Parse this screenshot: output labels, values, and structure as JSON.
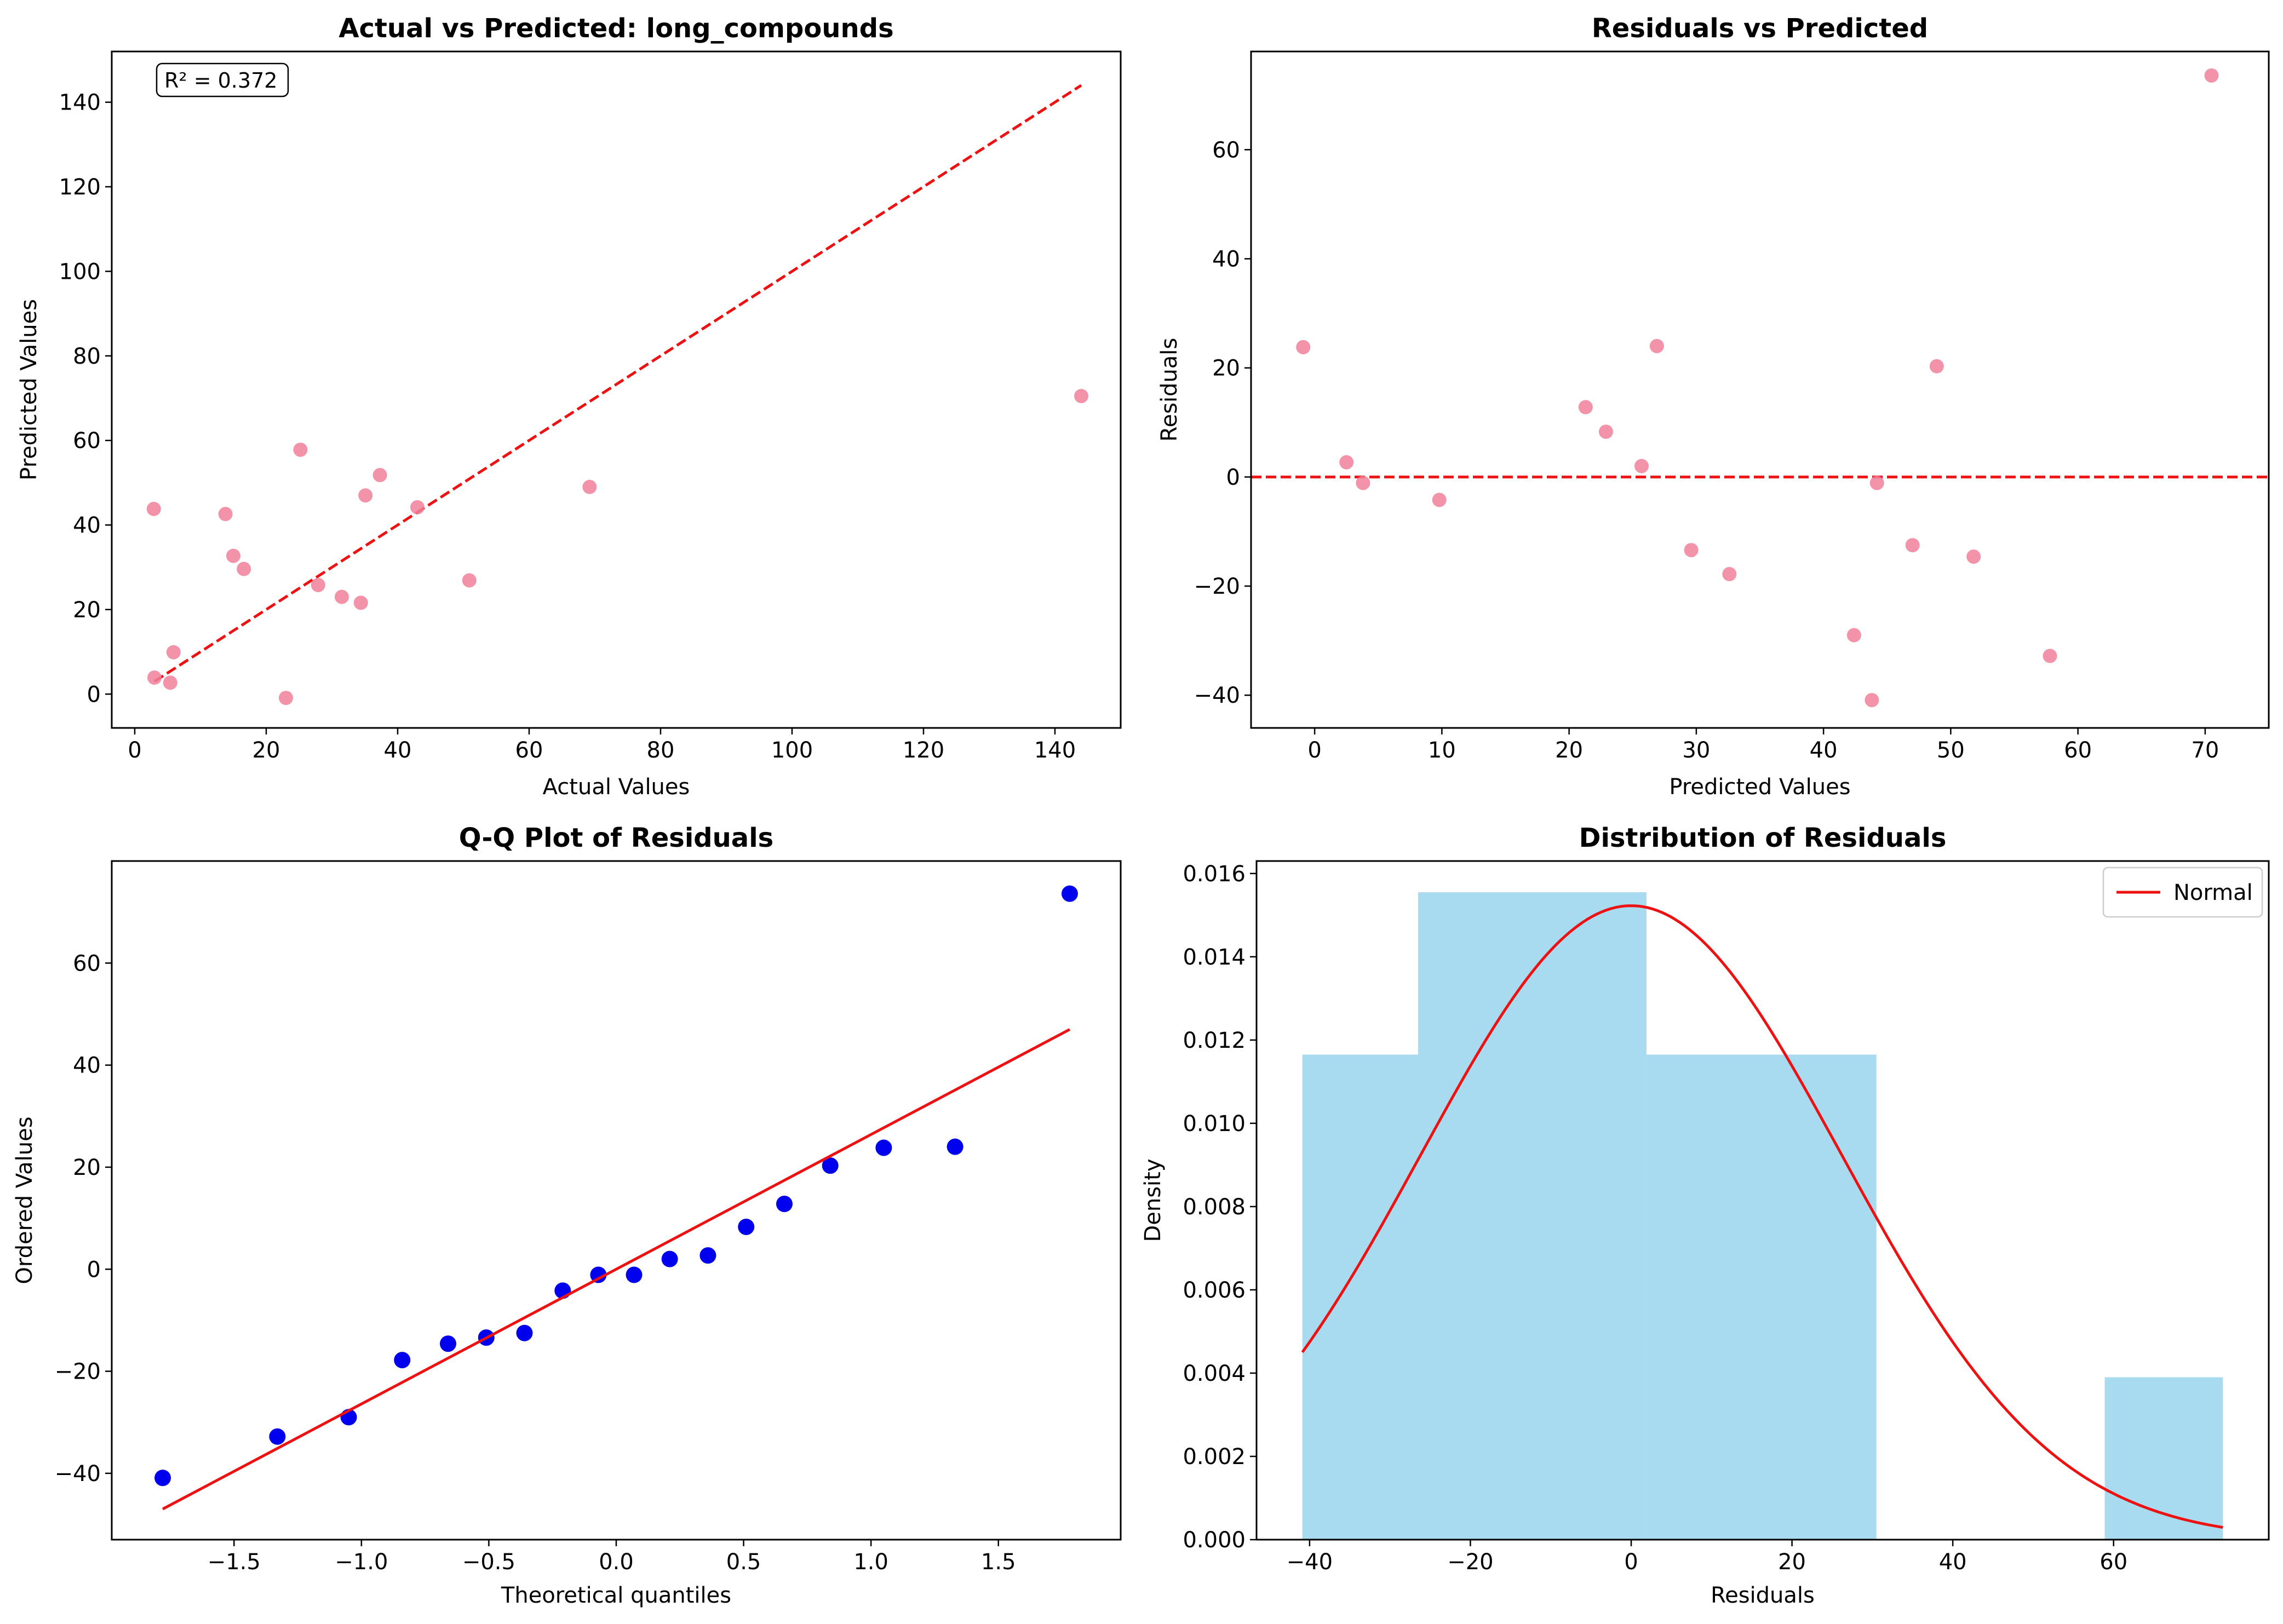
{
  "chart_data": [
    {
      "type": "scatter",
      "title": "Actual vs Predicted: long_compounds",
      "xlabel": "Actual Values",
      "ylabel": "Predicted Values",
      "xlim": [
        -3.5,
        150
      ],
      "ylim": [
        -8,
        152
      ],
      "xticks": [
        0,
        20,
        40,
        60,
        80,
        100,
        120,
        140
      ],
      "yticks": [
        0,
        20,
        40,
        60,
        80,
        100,
        120,
        140
      ],
      "annotation": "R² = 0.372",
      "reference_line": {
        "x": [
          3,
          144
        ],
        "y": [
          3,
          144
        ],
        "style": "dashed",
        "color": "#ee1111"
      },
      "point_color": "#f0809a",
      "x": [
        2.9,
        3.0,
        5.4,
        5.9,
        13.8,
        15.0,
        16.6,
        23.0,
        25.2,
        27.9,
        31.5,
        34.4,
        35.1,
        37.3,
        43.0,
        50.9,
        69.2,
        144.0
      ],
      "y": [
        43.8,
        3.9,
        2.7,
        9.9,
        42.6,
        32.7,
        29.6,
        -0.9,
        57.8,
        25.8,
        23.0,
        21.6,
        47.0,
        51.8,
        44.2,
        26.9,
        49.0,
        70.5
      ]
    },
    {
      "type": "scatter",
      "title": "Residuals vs Predicted",
      "xlabel": "Predicted Values",
      "ylabel": "Residuals",
      "xlim": [
        -5,
        75
      ],
      "ylim": [
        -46,
        78
      ],
      "xticks": [
        0,
        10,
        20,
        30,
        40,
        50,
        60,
        70
      ],
      "yticks": [
        -40,
        -20,
        0,
        20,
        40,
        60
      ],
      "reference_hline": {
        "y": 0,
        "style": "dashed",
        "color": "#ee1111"
      },
      "point_color": "#f0809a",
      "x": [
        -0.9,
        2.5,
        3.8,
        9.8,
        21.3,
        22.9,
        25.7,
        26.9,
        29.6,
        32.6,
        42.4,
        43.8,
        44.2,
        47.0,
        48.9,
        51.8,
        57.8,
        70.5
      ],
      "y": [
        23.8,
        2.7,
        -1.1,
        -4.2,
        12.8,
        8.3,
        2.0,
        24.0,
        -13.4,
        -17.8,
        -29.0,
        -40.9,
        -1.1,
        -12.5,
        20.3,
        -14.6,
        -32.8,
        73.6
      ]
    },
    {
      "type": "scatter",
      "title": "Q-Q Plot of Residuals",
      "xlabel": "Theoretical quantiles",
      "ylabel": "Ordered Values",
      "xlim": [
        -1.98,
        1.98
      ],
      "ylim": [
        -53,
        80
      ],
      "xticks": [
        -1.5,
        -1.0,
        -0.5,
        0.0,
        0.5,
        1.0,
        1.5
      ],
      "xtick_labels": [
        "−1.5",
        "−1.0",
        "−0.5",
        "0.0",
        "0.5",
        "1.0",
        "1.5"
      ],
      "yticks": [
        -40,
        -20,
        0,
        20,
        40,
        60
      ],
      "fit_line": {
        "x": [
          -1.78,
          1.78
        ],
        "y": [
          -47.0,
          47.0
        ],
        "color": "#ee1111"
      },
      "point_color": "#0000ee",
      "x": [
        -1.78,
        -1.33,
        -1.05,
        -0.84,
        -0.66,
        -0.51,
        -0.36,
        -0.21,
        -0.07,
        0.07,
        0.21,
        0.36,
        0.51,
        0.66,
        0.84,
        1.05,
        1.33,
        1.78
      ],
      "y": [
        -40.9,
        -32.8,
        -29.0,
        -17.8,
        -14.6,
        -13.4,
        -12.5,
        -4.2,
        -1.1,
        -1.1,
        2.0,
        2.7,
        8.3,
        12.8,
        20.3,
        23.8,
        24.0,
        73.6
      ]
    },
    {
      "type": "bar",
      "title": "Distribution of Residuals",
      "xlabel": "Residuals",
      "ylabel": "Density",
      "xlim": [
        -46.6,
        79.3
      ],
      "ylim": [
        0,
        0.0163
      ],
      "xticks": [
        -40,
        -20,
        0,
        20,
        40,
        60
      ],
      "yticks": [
        0.0,
        0.002,
        0.004,
        0.006,
        0.008,
        0.01,
        0.012,
        0.014,
        0.016
      ],
      "ytick_labels": [
        "0.000",
        "0.002",
        "0.004",
        "0.006",
        "0.008",
        "0.010",
        "0.012",
        "0.014",
        "0.016"
      ],
      "bar_color": "#a8dbef",
      "bins": [
        {
          "x0": -40.9,
          "x1": -26.5,
          "density": 0.01165
        },
        {
          "x0": -26.5,
          "x1": 1.9,
          "density": 0.01555
        },
        {
          "x0": 1.9,
          "x1": 30.5,
          "density": 0.01165
        },
        {
          "x0": 58.9,
          "x1": 73.6,
          "density": 0.0039
        }
      ],
      "normal_curve": {
        "mean": 0.0,
        "std": 26.2,
        "x_range": [
          -40.9,
          73.6
        ],
        "color": "#ee1111",
        "name": "Normal"
      },
      "legend": [
        "Normal"
      ],
      "legend_position": "upper right"
    }
  ]
}
